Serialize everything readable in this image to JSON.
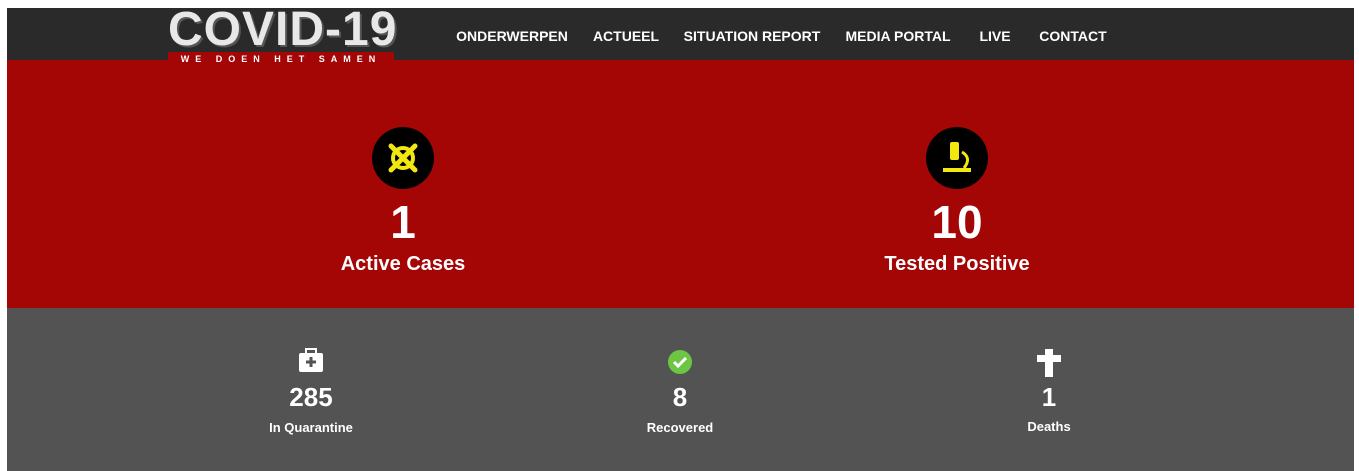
{
  "header": {
    "logo_title": "COVID-19",
    "logo_tagline": "WE DOEN HET SAMEN",
    "nav": [
      "ONDERWERPEN",
      "ACTUEEL",
      "SITUATION REPORT",
      "MEDIA PORTAL",
      "LIVE",
      "CONTACT"
    ]
  },
  "primary_stats": [
    {
      "value": 1,
      "label": "Active Cases"
    },
    {
      "value": 10,
      "label": "Tested Positive"
    }
  ],
  "secondary_stats": [
    {
      "value": 285,
      "label": "In Quarantine"
    },
    {
      "value": 8,
      "label": "Recovered"
    },
    {
      "value": 1,
      "label": "Deaths"
    }
  ]
}
